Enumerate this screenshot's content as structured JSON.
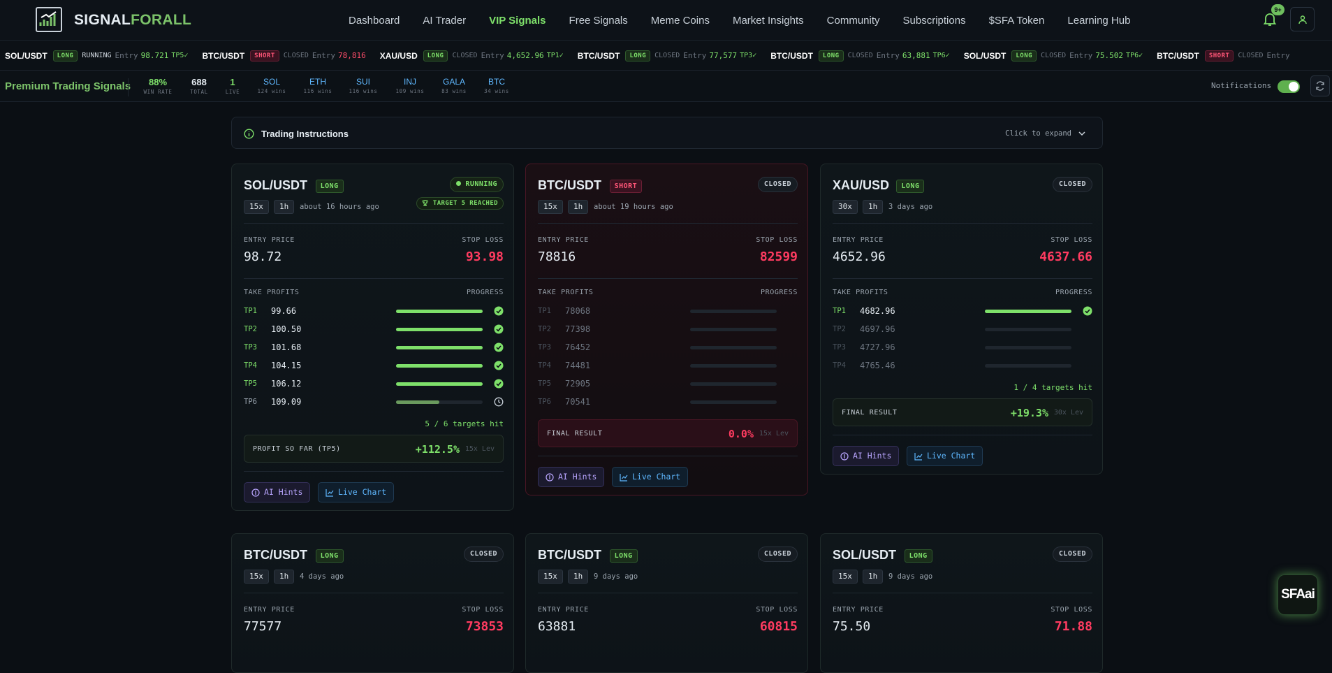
{
  "brand": {
    "name_part1": "SIGNAL",
    "name_part2": "FORALL"
  },
  "nav": {
    "links": [
      "Dashboard",
      "AI Trader",
      "VIP Signals",
      "Free Signals",
      "Meme Coins",
      "Market Insights",
      "Community",
      "Subscriptions",
      "$SFA Token",
      "Learning Hub"
    ],
    "active": "VIP Signals",
    "notification_badge": "9+"
  },
  "ticker": [
    {
      "pair": "SOL/USDT",
      "dir": "LONG",
      "status": "RUNNING",
      "entry_label": "Entry",
      "entry": "98.721",
      "tp": "TP5✓"
    },
    {
      "pair": "BTC/USDT",
      "dir": "SHORT",
      "status": "CLOSED",
      "entry_label": "Entry",
      "entry": "78,816",
      "tp": ""
    },
    {
      "pair": "XAU/USD",
      "dir": "LONG",
      "status": "CLOSED",
      "entry_label": "Entry",
      "entry": "4,652.96",
      "tp": "TP1✓"
    },
    {
      "pair": "BTC/USDT",
      "dir": "LONG",
      "status": "CLOSED",
      "entry_label": "Entry",
      "entry": "77,577",
      "tp": "TP3✓"
    },
    {
      "pair": "BTC/USDT",
      "dir": "LONG",
      "status": "CLOSED",
      "entry_label": "Entry",
      "entry": "63,881",
      "tp": "TP6✓"
    },
    {
      "pair": "SOL/USDT",
      "dir": "LONG",
      "status": "CLOSED",
      "entry_label": "Entry",
      "entry": "75.502",
      "tp": "TP6✓"
    },
    {
      "pair": "BTC/USDT",
      "dir": "SHORT",
      "status": "CLOSED",
      "entry_label": "Entry",
      "entry": "",
      "tp": ""
    }
  ],
  "stats": {
    "title": "Premium Trading Signals",
    "win_rate": {
      "value": "88%",
      "label": "WIN RATE"
    },
    "total": {
      "value": "688",
      "label": "TOTAL"
    },
    "live": {
      "value": "1",
      "label": "LIVE"
    },
    "coins": [
      {
        "name": "SOL",
        "wins": "124 wins"
      },
      {
        "name": "ETH",
        "wins": "116 wins"
      },
      {
        "name": "SUI",
        "wins": "116 wins"
      },
      {
        "name": "INJ",
        "wins": "109 wins"
      },
      {
        "name": "GALA",
        "wins": "83 wins"
      },
      {
        "name": "BTC",
        "wins": "34 wins"
      }
    ],
    "notifications_label": "Notifications",
    "notifications_on": true
  },
  "instructions": {
    "title": "Trading Instructions",
    "expand_label": "Click to expand"
  },
  "labels": {
    "entry_price": "ENTRY PRICE",
    "stop_loss": "STOP LOSS",
    "take_profits": "TAKE PROFITS",
    "progress": "PROGRESS",
    "final_result": "FINAL RESULT",
    "ai_hints": "AI Hints",
    "live_chart": "Live Chart"
  },
  "colors": {
    "accent": "#7ee06a",
    "danger": "#ff3b60",
    "background": "#0b0f14"
  },
  "cards": [
    {
      "pair": "SOL/USDT",
      "dir": "LONG",
      "status": "RUNNING",
      "reached": "TARGET 5 REACHED",
      "leverage": "15x",
      "tf": "1h",
      "ago": "about 16 hours ago",
      "entry": "98.72",
      "stop": "93.98",
      "tps": [
        {
          "n": "TP1",
          "p": "99.66",
          "state": "hit",
          "fill": 1
        },
        {
          "n": "TP2",
          "p": "100.50",
          "state": "hit",
          "fill": 1
        },
        {
          "n": "TP3",
          "p": "101.68",
          "state": "hit",
          "fill": 1
        },
        {
          "n": "TP4",
          "p": "104.15",
          "state": "hit",
          "fill": 1
        },
        {
          "n": "TP5",
          "p": "106.12",
          "state": "hit",
          "fill": 1
        },
        {
          "n": "TP6",
          "p": "109.09",
          "state": "next",
          "fill": 0.5
        }
      ],
      "hits": "5 / 6 targets hit",
      "result_label": "PROFIT SO FAR (TP5)",
      "result": "+112.5%",
      "lev": "15x Lev"
    },
    {
      "pair": "BTC/USDT",
      "dir": "SHORT",
      "status": "CLOSED",
      "leverage": "15x",
      "tf": "1h",
      "ago": "about 19 hours ago",
      "entry": "78816",
      "stop": "82599",
      "tps": [
        {
          "n": "TP1",
          "p": "78068",
          "state": "none",
          "fill": 0
        },
        {
          "n": "TP2",
          "p": "77398",
          "state": "none",
          "fill": 0
        },
        {
          "n": "TP3",
          "p": "76452",
          "state": "none",
          "fill": 0
        },
        {
          "n": "TP4",
          "p": "74481",
          "state": "none",
          "fill": 0
        },
        {
          "n": "TP5",
          "p": "72905",
          "state": "none",
          "fill": 0
        },
        {
          "n": "TP6",
          "p": "70541",
          "state": "none",
          "fill": 0
        }
      ],
      "result_label": "FINAL RESULT",
      "result": "0.0%",
      "lev": "15x Lev"
    },
    {
      "pair": "XAU/USD",
      "dir": "LONG",
      "status": "CLOSED",
      "leverage": "30x",
      "tf": "1h",
      "ago": "3 days ago",
      "entry": "4652.96",
      "stop": "4637.66",
      "tps": [
        {
          "n": "TP1",
          "p": "4682.96",
          "state": "hit",
          "fill": 1
        },
        {
          "n": "TP2",
          "p": "4697.96",
          "state": "none",
          "fill": 0
        },
        {
          "n": "TP3",
          "p": "4727.96",
          "state": "none",
          "fill": 0
        },
        {
          "n": "TP4",
          "p": "4765.46",
          "state": "none",
          "fill": 0
        }
      ],
      "hits": "1 / 4 targets hit",
      "result_label": "FINAL RESULT",
      "result": "+19.3%",
      "lev": "30x Lev"
    },
    {
      "pair": "BTC/USDT",
      "dir": "LONG",
      "status": "CLOSED",
      "leverage": "15x",
      "tf": "1h",
      "ago": "4 days ago",
      "entry": "77577",
      "stop": "73853"
    },
    {
      "pair": "BTC/USDT",
      "dir": "LONG",
      "status": "CLOSED",
      "leverage": "15x",
      "tf": "1h",
      "ago": "9 days ago",
      "entry": "63881",
      "stop": "60815"
    },
    {
      "pair": "SOL/USDT",
      "dir": "LONG",
      "status": "CLOSED",
      "leverage": "15x",
      "tf": "1h",
      "ago": "9 days ago",
      "entry": "75.50",
      "stop": "71.88"
    }
  ],
  "floating": {
    "sfa_button": "SFAai"
  }
}
